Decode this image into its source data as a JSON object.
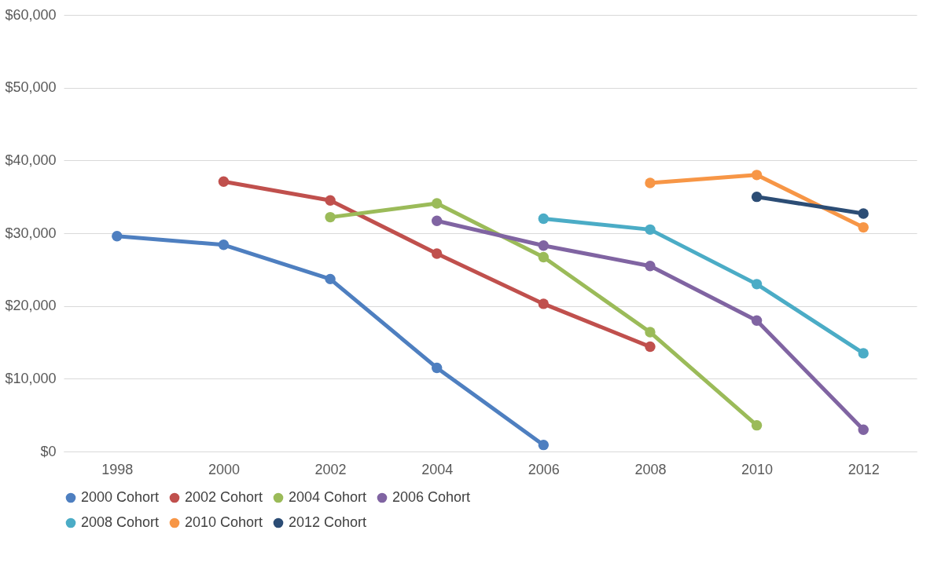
{
  "chart_data": {
    "type": "line",
    "categories": [
      "1998",
      "2000",
      "2002",
      "2004",
      "2006",
      "2008",
      "2010",
      "2012"
    ],
    "ylim": [
      0,
      60000
    ],
    "yticks": [
      {
        "value": 0,
        "label": "$0"
      },
      {
        "value": 10000,
        "label": "$10,000"
      },
      {
        "value": 20000,
        "label": "$20,000"
      },
      {
        "value": 30000,
        "label": "$30,000"
      },
      {
        "value": 40000,
        "label": "$40,000"
      },
      {
        "value": 50000,
        "label": "$50,000"
      },
      {
        "value": 60000,
        "label": "$60,000"
      }
    ],
    "grid": "y",
    "legend": "bottom",
    "marker": "circle",
    "series": [
      {
        "name": "2000 Cohort",
        "color": "#4e7fc0",
        "values": [
          29600,
          28400,
          23700,
          11500,
          900,
          null,
          null,
          null
        ]
      },
      {
        "name": "2002 Cohort",
        "color": "#c0504d",
        "values": [
          null,
          37100,
          34500,
          27200,
          20300,
          14400,
          null,
          null
        ]
      },
      {
        "name": "2004 Cohort",
        "color": "#9bbb59",
        "values": [
          null,
          null,
          32200,
          34100,
          26700,
          16400,
          3600,
          null
        ]
      },
      {
        "name": "2006 Cohort",
        "color": "#8064a2",
        "values": [
          null,
          null,
          null,
          31700,
          28300,
          25500,
          18000,
          3000
        ]
      },
      {
        "name": "2008 Cohort",
        "color": "#4bacc6",
        "values": [
          null,
          null,
          null,
          null,
          32000,
          30500,
          23000,
          13500
        ]
      },
      {
        "name": "2010 Cohort",
        "color": "#f79646",
        "values": [
          null,
          null,
          null,
          null,
          null,
          36900,
          38000,
          30800
        ]
      },
      {
        "name": "2012 Cohort",
        "color": "#2c4d75",
        "values": [
          null,
          null,
          null,
          null,
          null,
          null,
          35000,
          32700
        ]
      }
    ]
  }
}
